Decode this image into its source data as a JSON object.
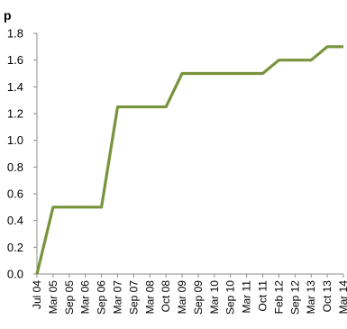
{
  "chart_data": {
    "type": "line",
    "title": "",
    "xlabel": "",
    "ylabel": "p",
    "ylim": [
      0,
      1.8
    ],
    "yticks": [
      "0.0",
      "0.2",
      "0.4",
      "0.6",
      "0.8",
      "1.0",
      "1.2",
      "1.4",
      "1.6",
      "1.8"
    ],
    "grid": false,
    "legend": "none",
    "line_color": "#77933c",
    "categories": [
      "Jul 04",
      "Mar 05",
      "Sep 05",
      "Mar 06",
      "Sep 06",
      "Mar 07",
      "Sep 07",
      "Mar 08",
      "Oct 08",
      "Mar 09",
      "Sep 09",
      "Mar 10",
      "Sep 10",
      "Mar 11",
      "Oct 11",
      "Feb 12",
      "Sep 12",
      "Mar 13",
      "Oct 13",
      "Mar 14"
    ],
    "series": [
      {
        "values": [
          0.0,
          0.5,
          0.5,
          0.5,
          0.5,
          1.25,
          1.25,
          1.25,
          1.25,
          1.5,
          1.5,
          1.5,
          1.5,
          1.5,
          1.5,
          1.6,
          1.6,
          1.6,
          1.7,
          1.7
        ]
      }
    ]
  }
}
